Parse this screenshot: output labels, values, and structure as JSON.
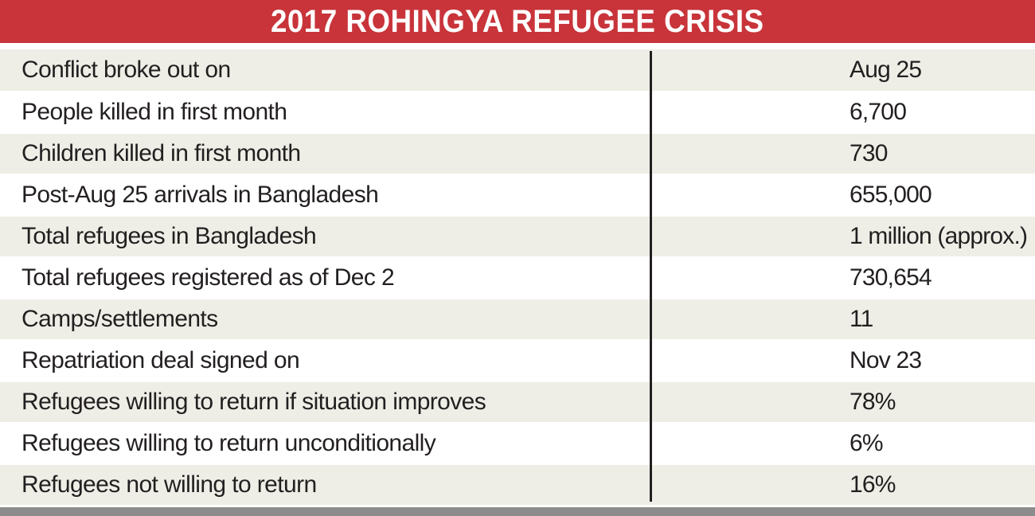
{
  "colors": {
    "title_background": "#c8343a",
    "title_text": "#ffffff",
    "row_shade": "#eeeee6",
    "text": "#231f20",
    "divider": "#231f20",
    "bottom_bar": "#8c8c8c"
  },
  "chart_data": {
    "type": "table",
    "title": "2017 ROHINGYA REFUGEE CRISIS",
    "rows": [
      {
        "label": "Conflict broke out on",
        "value": "Aug 25"
      },
      {
        "label": "People killed in first month",
        "value": "6,700"
      },
      {
        "label": "Children killed in first month",
        "value": "730"
      },
      {
        "label": "Post-Aug 25 arrivals in Bangladesh",
        "value": "655,000"
      },
      {
        "label": "Total refugees in Bangladesh",
        "value": "1 million (approx.)"
      },
      {
        "label": "Total refugees registered as of Dec 2",
        "value": "730,654"
      },
      {
        "label": "Camps/settlements",
        "value": "11"
      },
      {
        "label": "Repatriation deal signed on",
        "value": "Nov 23"
      },
      {
        "label": "Refugees willing to return if situation improves",
        "value": "78%"
      },
      {
        "label": "Refugees willing to return unconditionally",
        "value": "6%"
      },
      {
        "label": "Refugees not willing to return",
        "value": "16%"
      }
    ]
  }
}
